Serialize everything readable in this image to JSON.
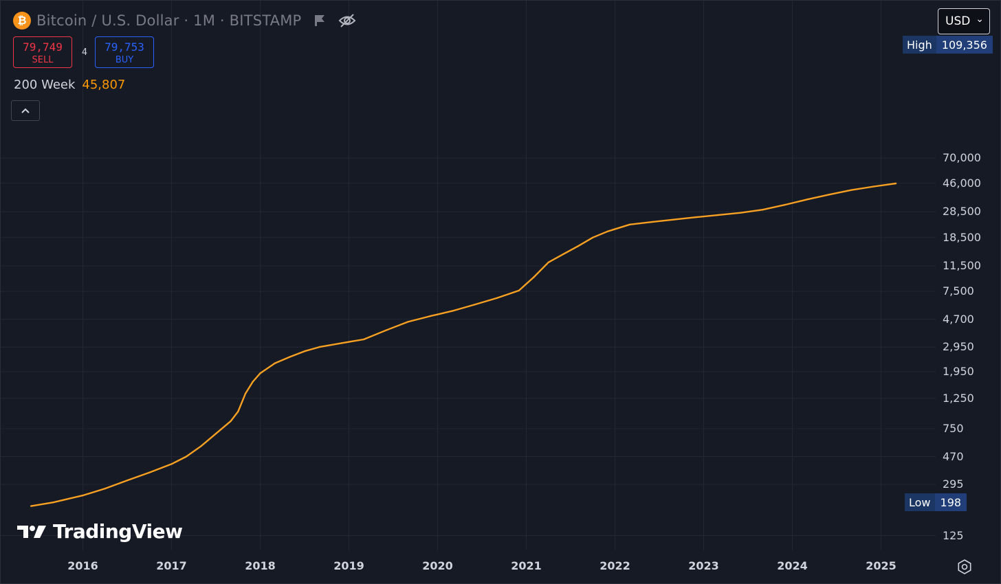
{
  "header": {
    "title": "Bitcoin / U.S. Dollar · 1M · BITSTAMP",
    "logo_glyph": "₿"
  },
  "trade": {
    "sell_price": "79,749",
    "sell_label": "SELL",
    "spread": "4",
    "buy_price": "79,753",
    "buy_label": "BUY"
  },
  "indicator": {
    "name": "200 Week",
    "value": "45,807",
    "color": "#ff9800"
  },
  "currency": {
    "label": "USD",
    "arrow": "⌄"
  },
  "badges": {
    "high_label": "High",
    "high_value": "109,356",
    "low_label": "Low",
    "low_value": "198"
  },
  "watermark": {
    "text": "TradingView"
  },
  "colors": {
    "background": "#161a25",
    "grid": "#232734",
    "line": "#f7a022",
    "sell": "#f23645",
    "buy": "#2962ff",
    "badge": "#1c3664"
  },
  "chart_data": {
    "type": "line",
    "title": "",
    "xlabel": "",
    "ylabel": "",
    "y_scale": "log",
    "ylim": [
      100,
      109356
    ],
    "y_ticks": [
      125,
      295,
      470,
      750,
      1250,
      1950,
      2950,
      4700,
      7500,
      11500,
      18500,
      28500,
      46000,
      70000
    ],
    "y_tick_labels": [
      "125",
      "295",
      "470",
      "750",
      "1,250",
      "1,950",
      "2,950",
      "4,700",
      "7,500",
      "11,500",
      "18,500",
      "28,500",
      "46,000",
      "70,000"
    ],
    "x_ticks": [
      "2016",
      "2017",
      "2018",
      "2019",
      "2020",
      "2021",
      "2022",
      "2023",
      "2024",
      "2025"
    ],
    "grid": true,
    "legend": "top-left",
    "series": [
      {
        "name": "200 Week",
        "x": [
          "2015-06",
          "2015-09",
          "2016-01",
          "2016-04",
          "2016-07",
          "2016-10",
          "2017-01",
          "2017-03",
          "2017-05",
          "2017-07",
          "2017-09",
          "2017-10",
          "2017-11",
          "2017-12",
          "2018-01",
          "2018-03",
          "2018-05",
          "2018-07",
          "2018-09",
          "2018-12",
          "2019-03",
          "2019-06",
          "2019-09",
          "2019-12",
          "2020-03",
          "2020-06",
          "2020-09",
          "2020-12",
          "2021-02",
          "2021-04",
          "2021-06",
          "2021-08",
          "2021-10",
          "2021-12",
          "2022-03",
          "2022-06",
          "2022-09",
          "2022-12",
          "2023-03",
          "2023-06",
          "2023-09",
          "2023-12",
          "2024-03",
          "2024-06",
          "2024-09",
          "2024-12",
          "2025-03"
        ],
        "y": [
          205,
          218,
          245,
          275,
          315,
          360,
          415,
          470,
          560,
          690,
          850,
          1000,
          1350,
          1650,
          1900,
          2250,
          2500,
          2750,
          2950,
          3150,
          3350,
          3900,
          4500,
          4950,
          5400,
          6000,
          6700,
          7600,
          9500,
          12200,
          14000,
          16000,
          18500,
          20500,
          23000,
          24000,
          25000,
          26000,
          27000,
          28000,
          29500,
          32000,
          35000,
          38000,
          41000,
          43500,
          45807
        ]
      }
    ],
    "high": 109356,
    "low": 198
  }
}
